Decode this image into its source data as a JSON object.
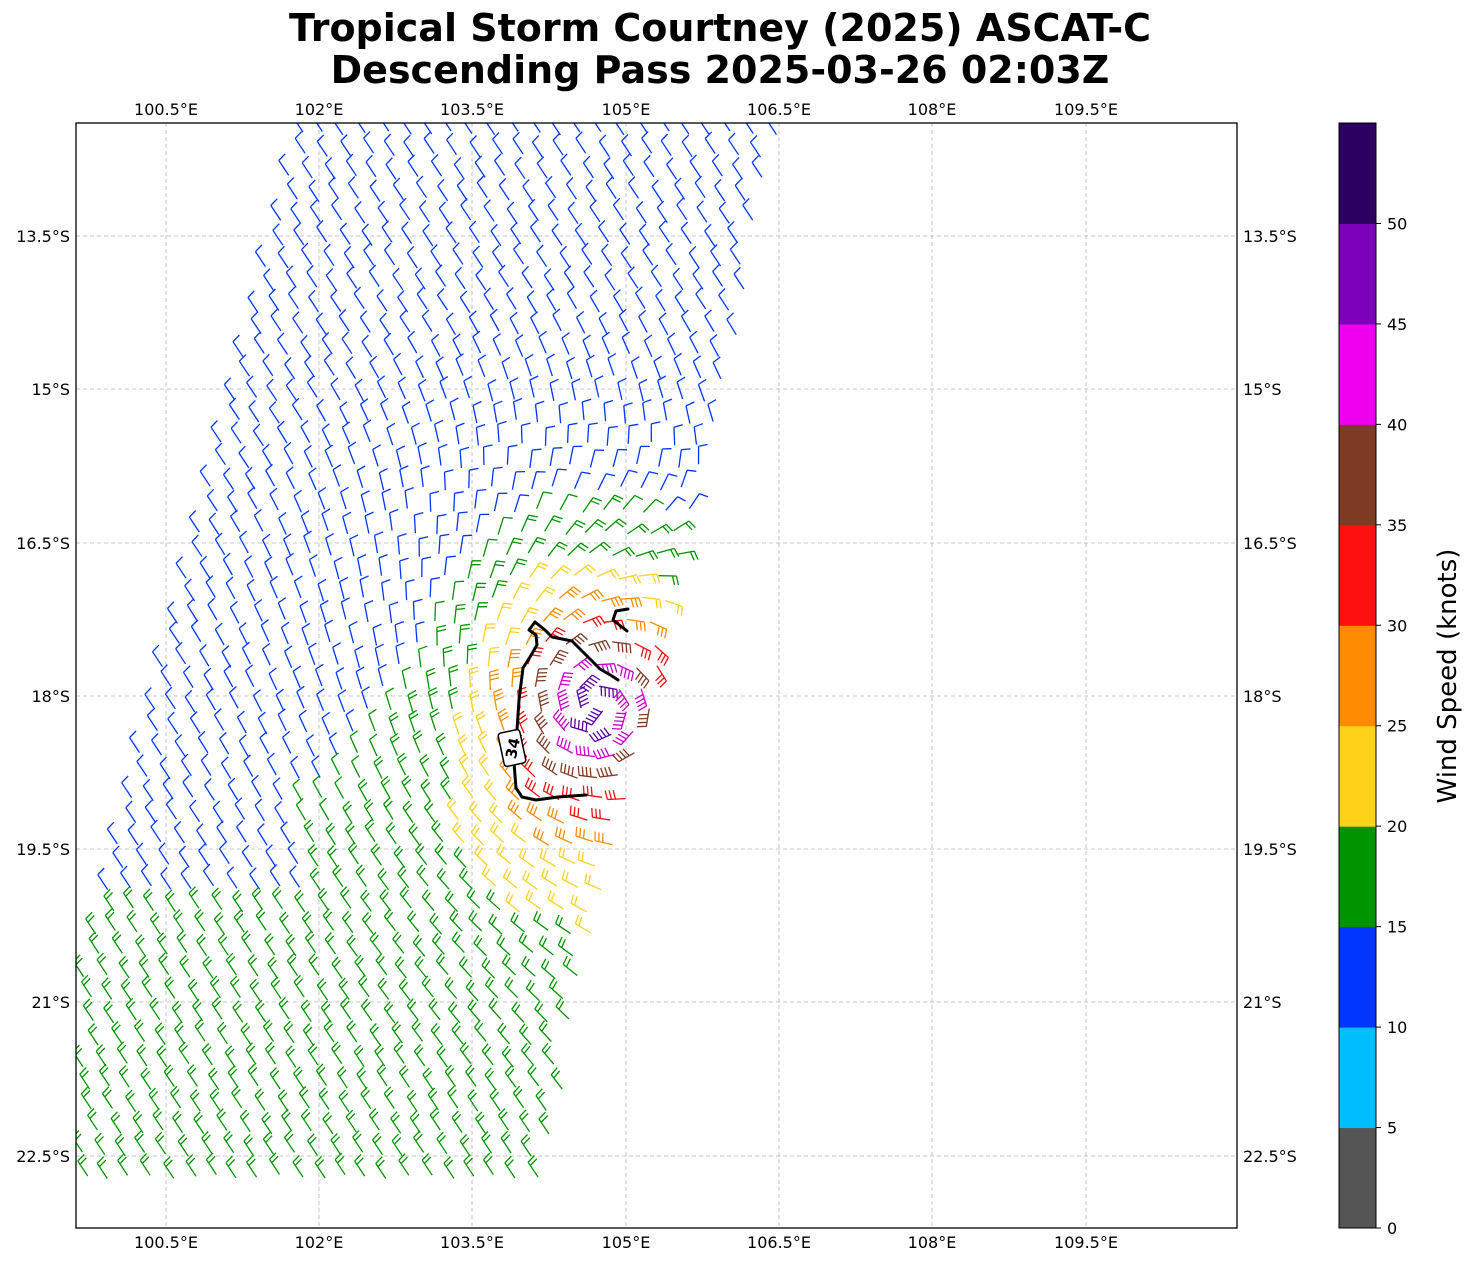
{
  "title_line1": "Tropical Storm Courtney (2025) ASCAT-C",
  "title_line2": "Descending Pass 2025-03-26 02:03Z",
  "lon_ticks": [
    "100.5°E",
    "102°E",
    "103.5°E",
    "105°E",
    "106.5°E",
    "108°E",
    "109.5°E"
  ],
  "lat_ticks": [
    "13.5°S",
    "15°S",
    "16.5°S",
    "18°S",
    "19.5°S",
    "21°S",
    "22.5°S"
  ],
  "contour_label": "34",
  "colorbar": {
    "label": "Wind Speed (knots)",
    "tick_labels": [
      "0",
      "5",
      "10",
      "15",
      "20",
      "25",
      "30",
      "35",
      "40",
      "45",
      "50"
    ],
    "colors": [
      "#555555",
      "#00bfff",
      "#0036ff",
      "#009400",
      "#ffd21a",
      "#ff8c00",
      "#ff1010",
      "#7f3a24",
      "#ee00ee",
      "#7d00bb",
      "#2b0060"
    ]
  },
  "wind_colors": {
    "blue": "#0036ff",
    "green": "#009400",
    "yellow": "#ffd21a",
    "orange": "#ff8c00",
    "red": "#ee1010",
    "brown": "#7f3a24",
    "magenta": "#cc00cc",
    "purple": "#5a00a0"
  }
}
